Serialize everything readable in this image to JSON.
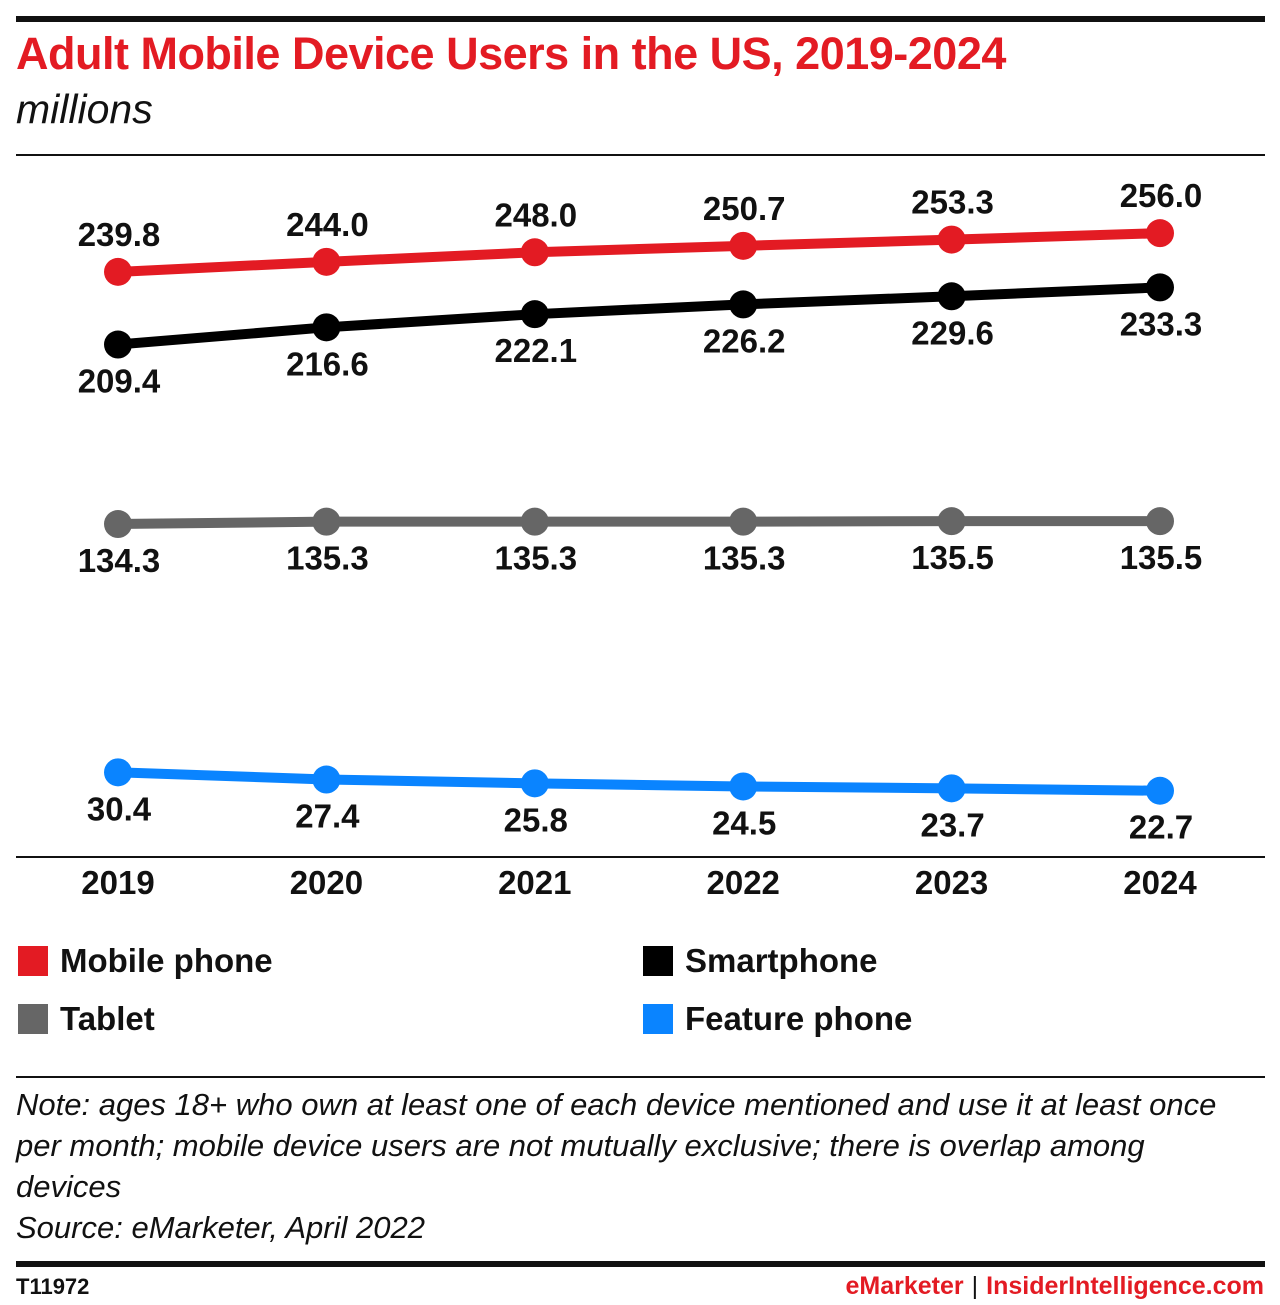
{
  "title": "Adult Mobile Device Users in the US, 2019-2024",
  "subtitle": "millions",
  "chart_data": {
    "type": "line",
    "title": "Adult Mobile Device Users in the US, 2019-2024",
    "subtitle": "millions",
    "x": [
      "2019",
      "2020",
      "2021",
      "2022",
      "2023",
      "2024"
    ],
    "series": [
      {
        "name": "Mobile phone",
        "color": "#e31b23",
        "values": [
          239.8,
          244.0,
          248.0,
          250.7,
          253.3,
          256.0
        ],
        "labels": [
          "239.8",
          "244.0",
          "248.0",
          "250.7",
          "253.3",
          "256.0"
        ]
      },
      {
        "name": "Smartphone",
        "color": "#000000",
        "values": [
          209.4,
          216.6,
          222.1,
          226.2,
          229.6,
          233.3
        ],
        "labels": [
          "209.4",
          "216.6",
          "222.1",
          "226.2",
          "229.6",
          "233.3"
        ]
      },
      {
        "name": "Tablet",
        "color": "#666666",
        "values": [
          134.3,
          135.3,
          135.3,
          135.3,
          135.5,
          135.5
        ],
        "labels": [
          "134.3",
          "135.3",
          "135.3",
          "135.3",
          "135.5",
          "135.5"
        ]
      },
      {
        "name": "Feature phone",
        "color": "#0a84ff",
        "values": [
          30.4,
          27.4,
          25.8,
          24.5,
          23.7,
          22.7
        ],
        "labels": [
          "30.4",
          "27.4",
          "25.8",
          "24.5",
          "23.7",
          "22.7"
        ]
      }
    ],
    "ylim": [
      0,
      280
    ],
    "grid": false,
    "legend_position": "bottom"
  },
  "legend": [
    {
      "label": "Mobile phone",
      "color": "#e31b23"
    },
    {
      "label": "Smartphone",
      "color": "#000000"
    },
    {
      "label": "Tablet",
      "color": "#666666"
    },
    {
      "label": "Feature phone",
      "color": "#0a84ff"
    }
  ],
  "note": "Note: ages 18+ who own at least one of each device mentioned and use it at least once per month; mobile device users are not mutually exclusive; there is overlap among devices",
  "source": "Source: eMarketer, April 2022",
  "footer": {
    "chart_id": "T11972",
    "brand_left": "eMarketer",
    "separator": "|",
    "brand_right": "InsiderIntelligence.com"
  }
}
